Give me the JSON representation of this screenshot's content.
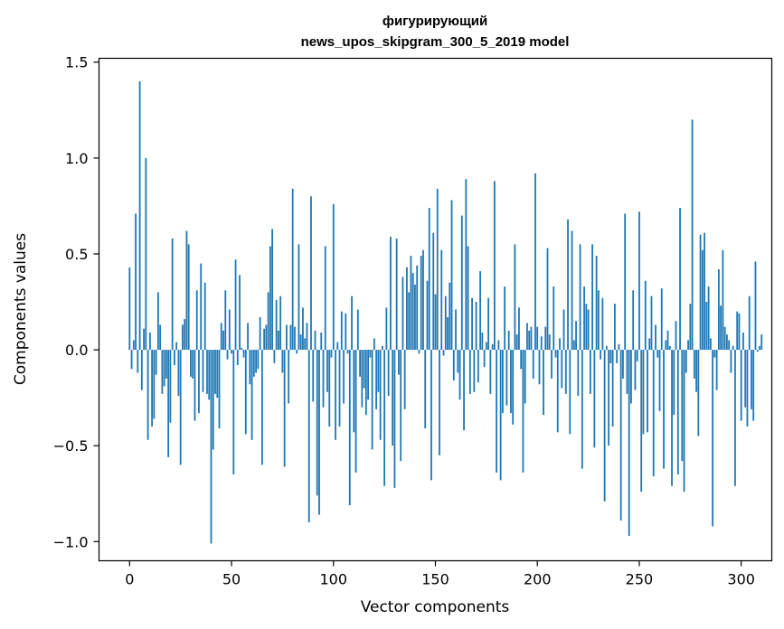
{
  "chart_data": {
    "type": "bar",
    "title_line1": "фигурирующий",
    "title_line2": "news_upos_skipgram_300_5_2019 model",
    "xlabel": "Vector components",
    "ylabel": "Components values",
    "xlim": [
      -15,
      315
    ],
    "ylim": [
      -1.1,
      1.52
    ],
    "xticks": [
      0,
      50,
      100,
      150,
      200,
      250,
      300
    ],
    "xtick_labels": [
      "0",
      "50",
      "100",
      "150",
      "200",
      "250",
      "300"
    ],
    "yticks": [
      -1.0,
      -0.5,
      0.0,
      0.5,
      1.0,
      1.5
    ],
    "ytick_labels": [
      "−1.0",
      "−0.5",
      "0.0",
      "0.5",
      "1.0",
      "1.5"
    ],
    "grid": false,
    "bar_color": "#1f77b4",
    "values": [
      0.43,
      -0.1,
      0.05,
      0.71,
      -0.12,
      1.4,
      -0.21,
      0.11,
      1.0,
      -0.47,
      0.09,
      -0.4,
      -0.36,
      -0.13,
      0.3,
      0.13,
      -0.23,
      -0.19,
      -0.15,
      -0.56,
      -0.38,
      0.58,
      -0.08,
      0.04,
      -0.24,
      -0.6,
      0.13,
      0.16,
      0.62,
      0.55,
      -0.14,
      -0.15,
      -0.37,
      0.31,
      -0.33,
      0.45,
      -0.22,
      0.35,
      -0.23,
      -0.26,
      -1.01,
      -0.52,
      -0.23,
      -0.25,
      -0.41,
      0.14,
      0.1,
      0.31,
      -0.05,
      0.21,
      -0.02,
      -0.65,
      0.47,
      -0.08,
      0.39,
      0.01,
      -0.04,
      -0.44,
      0.14,
      -0.18,
      -0.47,
      -0.14,
      -0.12,
      -0.1,
      0.17,
      -0.6,
      0.11,
      0.13,
      0.3,
      0.54,
      0.63,
      -0.07,
      0.26,
      0.1,
      0.28,
      -0.12,
      -0.61,
      0.13,
      -0.28,
      0.13,
      0.84,
      0.12,
      -0.02,
      0.55,
      0.08,
      0.22,
      0.06,
      0.14,
      -0.9,
      0.8,
      -0.27,
      0.1,
      -0.76,
      -0.86,
      0.09,
      -0.3,
      0.54,
      -0.22,
      -0.4,
      -0.04,
      0.76,
      -0.47,
      0.04,
      -0.4,
      0.2,
      -0.28,
      0.19,
      -0.02,
      -0.81,
      0.28,
      -0.43,
      -0.64,
      0.21,
      -0.14,
      -0.3,
      -0.2,
      -0.34,
      -0.26,
      -0.04,
      -0.52,
      0.06,
      -0.31,
      -0.22,
      -0.47,
      0.02,
      -0.71,
      0.22,
      -0.24,
      0.59,
      -0.5,
      -0.72,
      0.58,
      -0.13,
      -0.58,
      0.38,
      -0.31,
      0.43,
      0.3,
      0.49,
      0.4,
      0.34,
      0.44,
      -0.02,
      0.49,
      0.52,
      -0.41,
      0.36,
      0.74,
      -0.68,
      0.61,
      0.29,
      0.84,
      -0.55,
      0.52,
      -0.03,
      0.28,
      0.17,
      0.35,
      0.78,
      -0.16,
      0.21,
      -0.12,
      -0.26,
      0.7,
      -0.42,
      0.89,
      0.54,
      -0.23,
      0.27,
      -0.22,
      0.25,
      -0.17,
      0.41,
      0.09,
      -0.09,
      0.04,
      0.27,
      -0.23,
      0.03,
      0.88,
      -0.64,
      0.05,
      -0.68,
      -0.33,
      0.33,
      -0.29,
      0.1,
      -0.33,
      -0.39,
      0.55,
      0.08,
      0.22,
      -0.1,
      -0.64,
      -0.28,
      0.14,
      0.1,
      0.12,
      -0.15,
      0.92,
      0.12,
      -0.18,
      0.07,
      -0.34,
      0.12,
      0.53,
      0.08,
      -0.15,
      0.33,
      -0.04,
      -0.43,
      0.06,
      -0.2,
      0.21,
      -0.23,
      0.68,
      -0.44,
      0.62,
      0.05,
      0.15,
      -0.24,
      0.55,
      -0.62,
      0.33,
      0.24,
      0.21,
      -0.23,
      0.55,
      -0.51,
      0.49,
      0.31,
      -0.05,
      0.27,
      -0.79,
      0.02,
      -0.5,
      -0.07,
      -0.4,
      0.24,
      -0.07,
      0.03,
      -0.89,
      -0.15,
      0.71,
      -0.23,
      -0.97,
      -0.28,
      0.31,
      -0.21,
      -0.06,
      0.72,
      -0.74,
      -0.44,
      0.36,
      -0.43,
      0.06,
      0.28,
      -0.66,
      0.13,
      -0.04,
      -0.32,
      0.32,
      -0.62,
      0.05,
      0.1,
      0.02,
      -0.71,
      -0.34,
      0.15,
      -0.65,
      0.74,
      -0.58,
      -0.74,
      -0.12,
      0.05,
      0.24,
      1.2,
      -0.15,
      -0.22,
      -0.45,
      0.6,
      0.52,
      0.61,
      0.25,
      0.33,
      0.06,
      -0.92,
      -0.04,
      -0.21,
      0.42,
      0.23,
      0.52,
      0.12,
      0.08,
      0.05,
      -0.12,
      0.02,
      -0.71,
      0.2,
      0.19,
      -0.37,
      0.09,
      -0.3,
      -0.4,
      0.28,
      -0.31,
      -0.37,
      0.46,
      -0.01,
      0.02,
      0.08
    ]
  }
}
